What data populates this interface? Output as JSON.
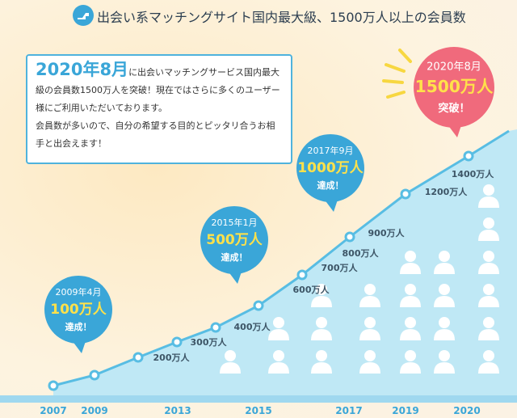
{
  "header": {
    "title": "出会い系マッチングサイト国内最大級、1500万人以上の会員数"
  },
  "intro": {
    "highlight": "2020年8月",
    "text1": "に出会いマッチングサービス国内最大級の会員数1500万人を突破！現在ではさらに多くのユーザー様にご利用いただいております。",
    "text2": "会員数が多いので、自分の希望する目的とピッタリ合うお相手と出会えます！"
  },
  "callouts": [
    {
      "date": "2009年4月",
      "amount": "100万人",
      "status": "達成！"
    },
    {
      "date": "2015年1月",
      "amount": "500万人",
      "status": "達成！"
    },
    {
      "date": "2017年9月",
      "amount": "1000万人",
      "status": "達成！"
    },
    {
      "date": "2020年8月",
      "amount": "1500万人",
      "status": "突破！"
    }
  ],
  "point_labels": [
    "200万人",
    "300万人",
    "400万人",
    "600万人",
    "700万人",
    "800万人",
    "900万人",
    "1200万人",
    "1400万人"
  ],
  "years": [
    "2007",
    "2009",
    "2013",
    "2015",
    "2017",
    "2019",
    "2020"
  ]
}
